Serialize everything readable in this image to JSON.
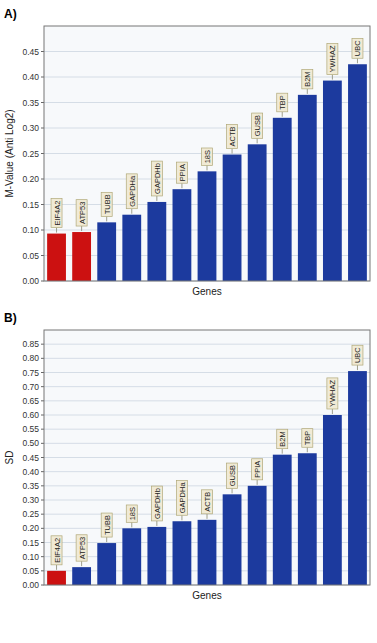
{
  "chart_data": [
    {
      "type": "bar",
      "title": "A)",
      "categories": [
        "EIF4A2",
        "ATP53",
        "TUBB",
        "GAPDHa",
        "GAPDHb",
        "PPIA",
        "18S",
        "ACTB",
        "GUSB",
        "TBP",
        "B2M",
        "YWHAZ",
        "UBC"
      ],
      "values": [
        0.093,
        0.096,
        0.115,
        0.13,
        0.155,
        0.18,
        0.215,
        0.248,
        0.268,
        0.32,
        0.365,
        0.393,
        0.425
      ],
      "colors": [
        "#cc1111",
        "#cc1111",
        "#1c3a9e",
        "#1c3a9e",
        "#1c3a9e",
        "#1c3a9e",
        "#1c3a9e",
        "#1c3a9e",
        "#1c3a9e",
        "#1c3a9e",
        "#1c3a9e",
        "#1c3a9e",
        "#1c3a9e"
      ],
      "xlabel": "Genes",
      "ylabel": "M-Value (Anti Log2)",
      "ylim": [
        0,
        0.5
      ],
      "yticks": [
        {
          "value": 0,
          "label": "0.00"
        },
        0.05,
        {
          "value": 0.1,
          "label": "0.10"
        },
        0.15,
        {
          "value": 0.2,
          "label": "0.20"
        },
        0.25,
        {
          "value": 0.3,
          "label": "0.30"
        },
        0.35,
        {
          "value": 0.4,
          "label": "0.40"
        },
        0.45
      ],
      "grid": true,
      "tick_labels": "y"
    },
    {
      "type": "bar",
      "title": "B)",
      "categories": [
        "EIF4A2",
        "ATP53",
        "TUBB",
        "18S",
        "GAPDHb",
        "GAPDHa",
        "ACTB",
        "GUSB",
        "PPIA",
        "B2M",
        "TBP",
        "YWHAZ",
        "UBC"
      ],
      "values": [
        0.05,
        0.063,
        0.148,
        0.2,
        0.205,
        0.225,
        0.23,
        0.32,
        0.35,
        0.46,
        0.465,
        0.6,
        0.755
      ],
      "colors": [
        "#cc1111",
        "#1c3a9e",
        "#1c3a9e",
        "#1c3a9e",
        "#1c3a9e",
        "#1c3a9e",
        "#1c3a9e",
        "#1c3a9e",
        "#1c3a9e",
        "#1c3a9e",
        "#1c3a9e",
        "#1c3a9e",
        "#1c3a9e"
      ],
      "xlabel": "Genes",
      "ylabel": "SD",
      "ylim": [
        0,
        0.9
      ],
      "yticks": [
        {
          "value": 0,
          "label": "0.00"
        },
        0.05,
        {
          "value": 0.1,
          "label": "0.10"
        },
        0.15,
        {
          "value": 0.2,
          "label": "0.20"
        },
        0.25,
        {
          "value": 0.3,
          "label": "0.30"
        },
        0.35,
        {
          "value": 0.4,
          "label": "0.40"
        },
        0.45,
        {
          "value": 0.5,
          "label": "0.50"
        },
        0.55,
        {
          "value": 0.6,
          "label": "0.60"
        },
        0.65,
        {
          "value": 0.7,
          "label": "0.70"
        },
        0.75,
        {
          "value": 0.8,
          "label": "0.80"
        },
        0.85
      ],
      "grid": true,
      "tick_labels": "y"
    }
  ]
}
